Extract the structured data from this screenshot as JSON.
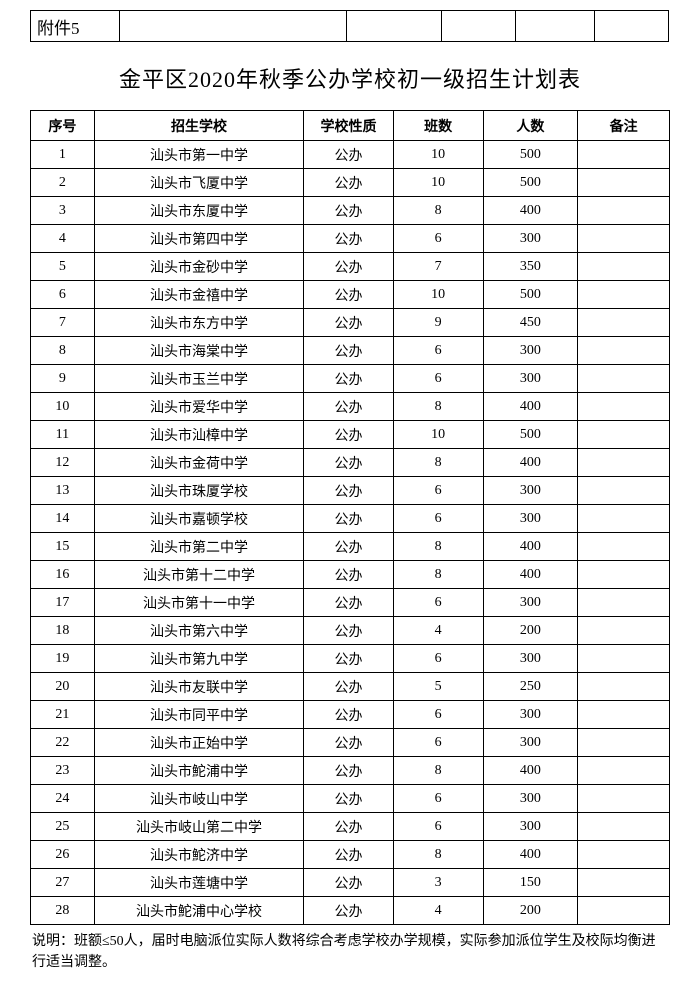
{
  "attachmentLabel": "附件5",
  "title": "金平区2020年秋季公办学校初一级招生计划表",
  "columns": [
    "序号",
    "招生学校",
    "学校性质",
    "班数",
    "人数",
    "备注"
  ],
  "rows": [
    {
      "idx": "1",
      "school": "汕头市第一中学",
      "type": "公办",
      "classes": "10",
      "count": "500",
      "note": ""
    },
    {
      "idx": "2",
      "school": "汕头市飞厦中学",
      "type": "公办",
      "classes": "10",
      "count": "500",
      "note": ""
    },
    {
      "idx": "3",
      "school": "汕头市东厦中学",
      "type": "公办",
      "classes": "8",
      "count": "400",
      "note": ""
    },
    {
      "idx": "4",
      "school": "汕头市第四中学",
      "type": "公办",
      "classes": "6",
      "count": "300",
      "note": ""
    },
    {
      "idx": "5",
      "school": "汕头市金砂中学",
      "type": "公办",
      "classes": "7",
      "count": "350",
      "note": ""
    },
    {
      "idx": "6",
      "school": "汕头市金禧中学",
      "type": "公办",
      "classes": "10",
      "count": "500",
      "note": ""
    },
    {
      "idx": "7",
      "school": "汕头市东方中学",
      "type": "公办",
      "classes": "9",
      "count": "450",
      "note": ""
    },
    {
      "idx": "8",
      "school": "汕头市海棠中学",
      "type": "公办",
      "classes": "6",
      "count": "300",
      "note": ""
    },
    {
      "idx": "9",
      "school": "汕头市玉兰中学",
      "type": "公办",
      "classes": "6",
      "count": "300",
      "note": ""
    },
    {
      "idx": "10",
      "school": "汕头市爱华中学",
      "type": "公办",
      "classes": "8",
      "count": "400",
      "note": ""
    },
    {
      "idx": "11",
      "school": "汕头市汕樟中学",
      "type": "公办",
      "classes": "10",
      "count": "500",
      "note": ""
    },
    {
      "idx": "12",
      "school": "汕头市金荷中学",
      "type": "公办",
      "classes": "8",
      "count": "400",
      "note": ""
    },
    {
      "idx": "13",
      "school": "汕头市珠厦学校",
      "type": "公办",
      "classes": "6",
      "count": "300",
      "note": ""
    },
    {
      "idx": "14",
      "school": "汕头市嘉顿学校",
      "type": "公办",
      "classes": "6",
      "count": "300",
      "note": ""
    },
    {
      "idx": "15",
      "school": "汕头市第二中学",
      "type": "公办",
      "classes": "8",
      "count": "400",
      "note": ""
    },
    {
      "idx": "16",
      "school": "汕头市第十二中学",
      "type": "公办",
      "classes": "8",
      "count": "400",
      "note": ""
    },
    {
      "idx": "17",
      "school": "汕头市第十一中学",
      "type": "公办",
      "classes": "6",
      "count": "300",
      "note": ""
    },
    {
      "idx": "18",
      "school": "汕头市第六中学",
      "type": "公办",
      "classes": "4",
      "count": "200",
      "note": ""
    },
    {
      "idx": "19",
      "school": "汕头市第九中学",
      "type": "公办",
      "classes": "6",
      "count": "300",
      "note": ""
    },
    {
      "idx": "20",
      "school": "汕头市友联中学",
      "type": "公办",
      "classes": "5",
      "count": "250",
      "note": ""
    },
    {
      "idx": "21",
      "school": "汕头市同平中学",
      "type": "公办",
      "classes": "6",
      "count": "300",
      "note": ""
    },
    {
      "idx": "22",
      "school": "汕头市正始中学",
      "type": "公办",
      "classes": "6",
      "count": "300",
      "note": ""
    },
    {
      "idx": "23",
      "school": "汕头市鮀浦中学",
      "type": "公办",
      "classes": "8",
      "count": "400",
      "note": ""
    },
    {
      "idx": "24",
      "school": "汕头市岐山中学",
      "type": "公办",
      "classes": "6",
      "count": "300",
      "note": ""
    },
    {
      "idx": "25",
      "school": "汕头市岐山第二中学",
      "type": "公办",
      "classes": "6",
      "count": "300",
      "note": ""
    },
    {
      "idx": "26",
      "school": "汕头市鮀济中学",
      "type": "公办",
      "classes": "8",
      "count": "400",
      "note": ""
    },
    {
      "idx": "27",
      "school": "汕头市莲塘中学",
      "type": "公办",
      "classes": "3",
      "count": "150",
      "note": ""
    },
    {
      "idx": "28",
      "school": "汕头市鮀浦中心学校",
      "type": "公办",
      "classes": "4",
      "count": "200",
      "note": ""
    }
  ],
  "footnote": "说明：班额≤50人，届时电脑派位实际人数将综合考虑学校办学规模，实际参加派位学生及校际均衡进行适当调整。"
}
